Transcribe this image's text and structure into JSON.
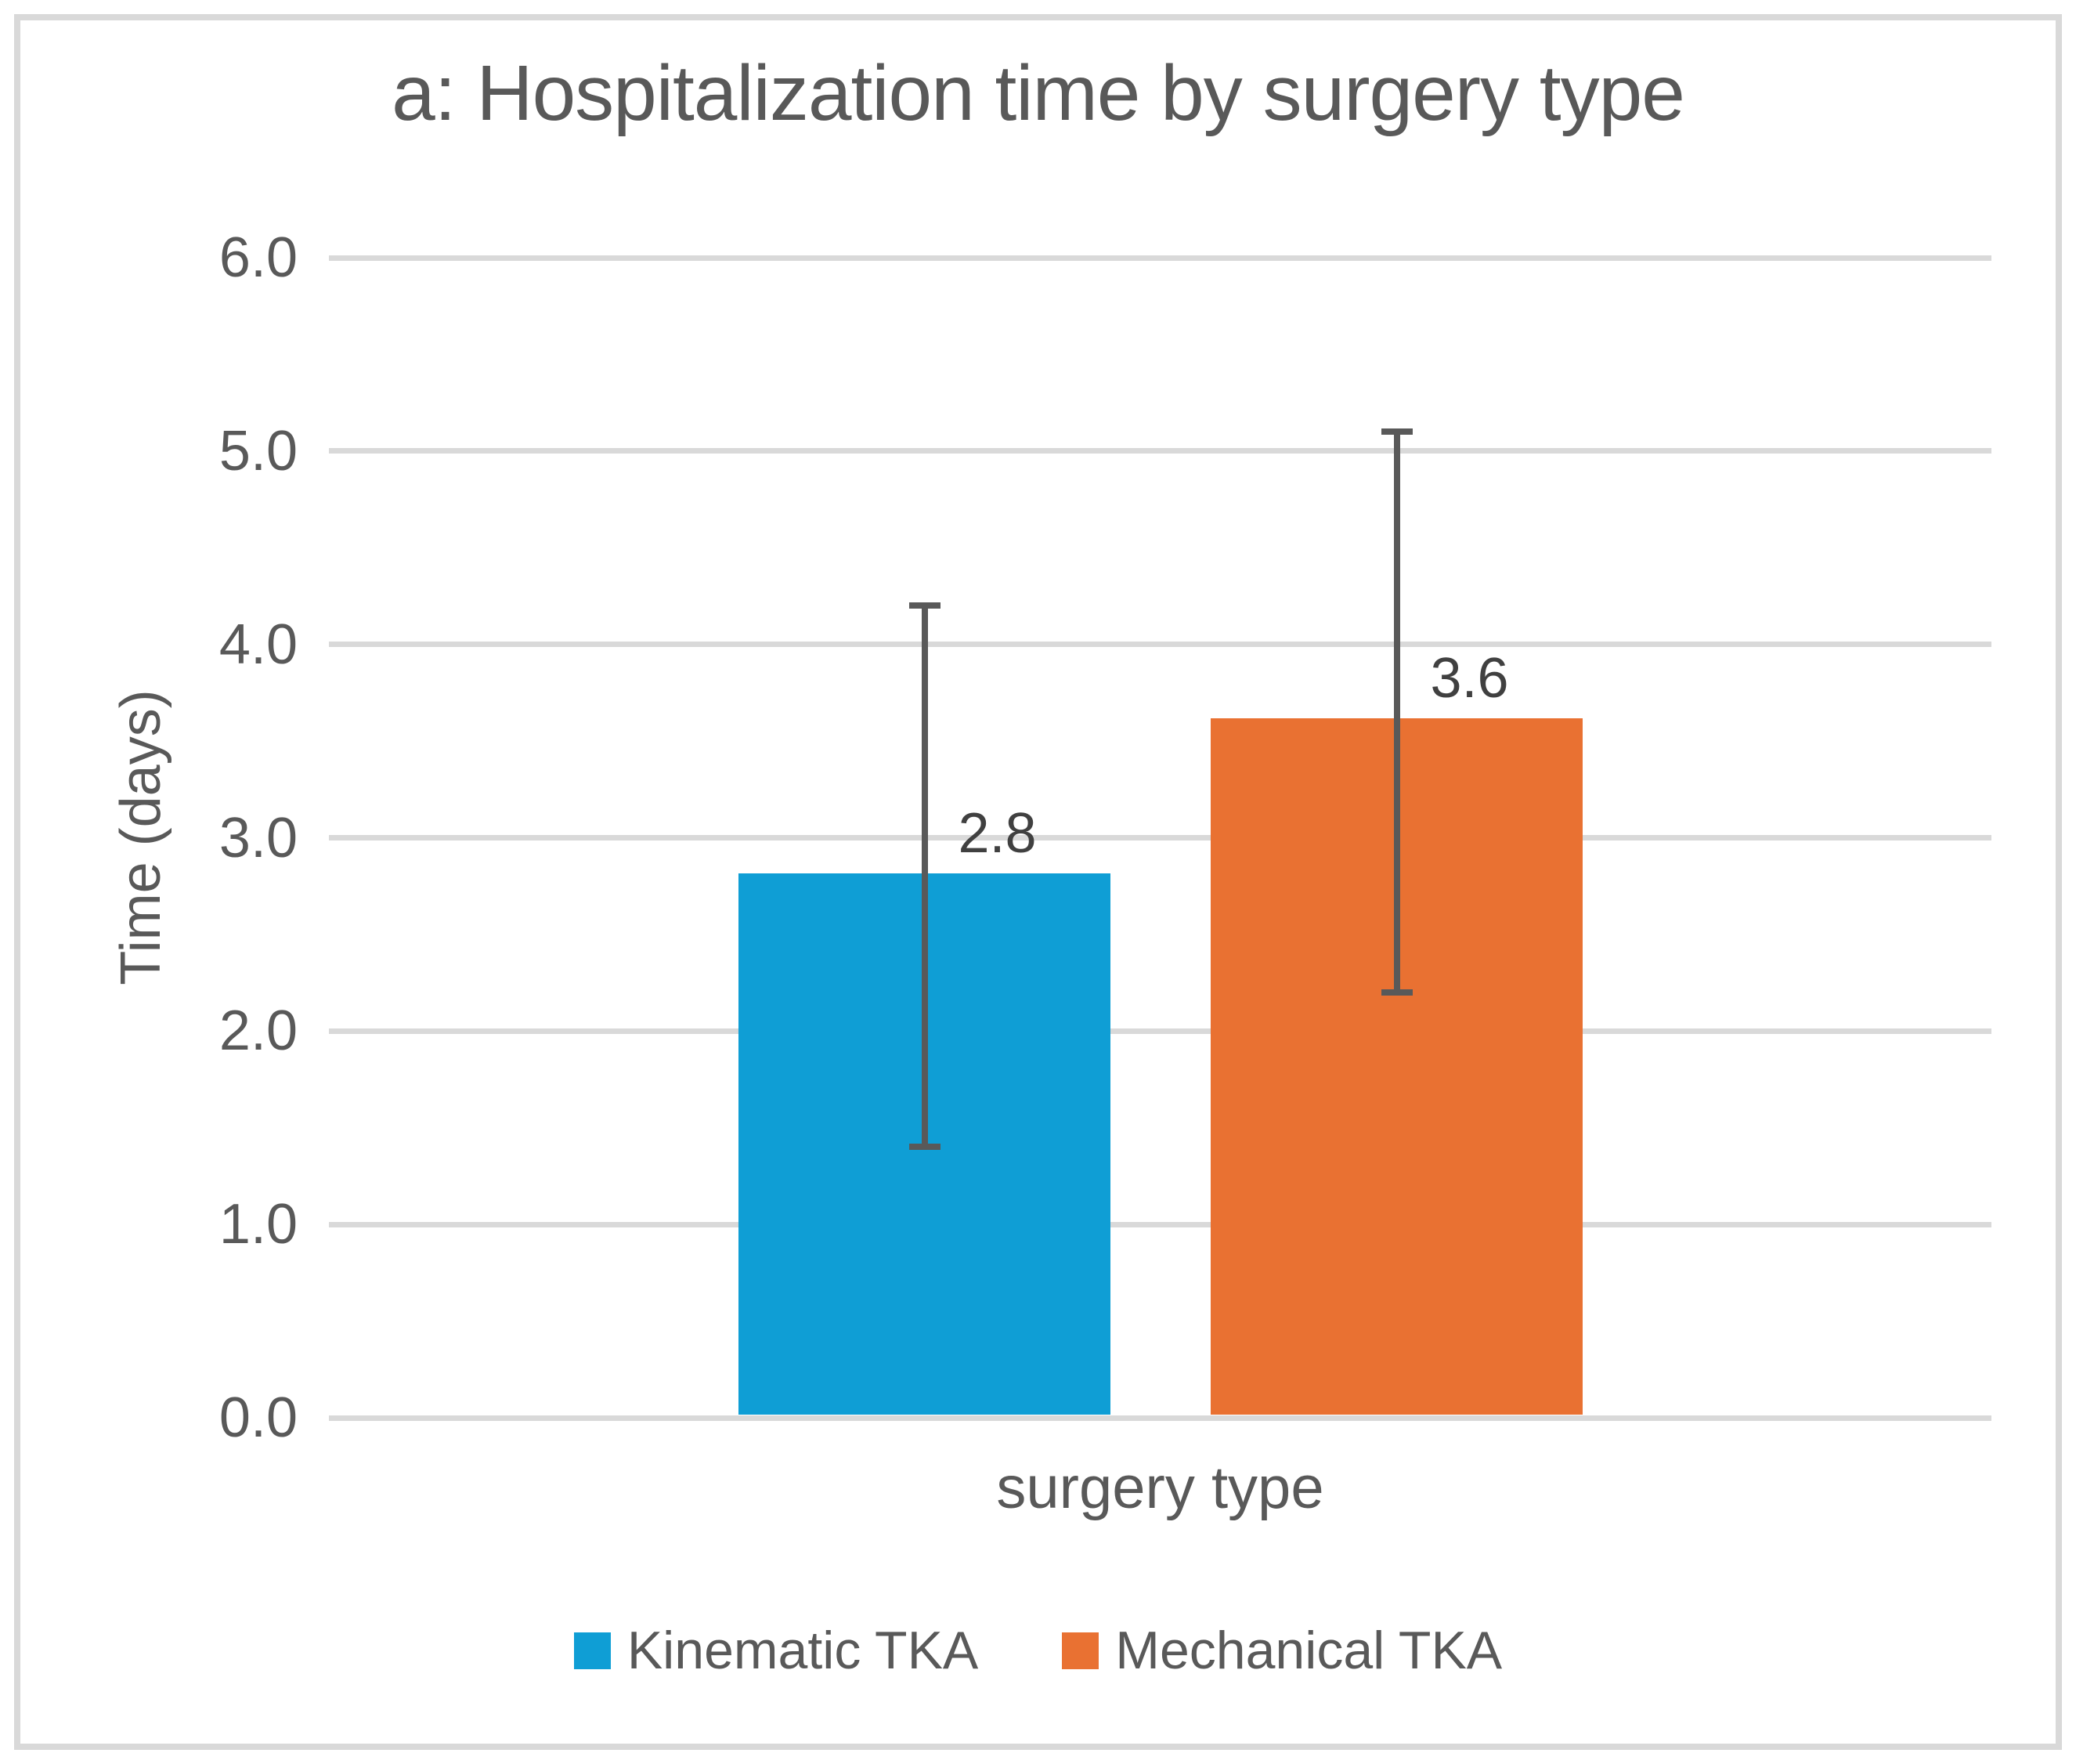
{
  "figure": {
    "background": "#FFFFFF",
    "border_color": "#D9D9D9"
  },
  "chart_data": {
    "type": "bar",
    "title": "a: Hospitalization time by surgery type",
    "xlabel": "surgery type",
    "ylabel": "Time (days)",
    "ylim": [
      0,
      6
    ],
    "yticks": [
      0,
      1,
      2,
      3,
      4,
      5,
      6
    ],
    "ytick_labels": [
      "0.0",
      "1.0",
      "2.0",
      "3.0",
      "4.0",
      "5.0",
      "6.0"
    ],
    "categories": [
      "Kinematic TKA",
      "Mechanical TKA"
    ],
    "values": [
      2.8,
      3.6
    ],
    "value_labels": [
      "2.8",
      "3.6"
    ],
    "error_bars": [
      {
        "low": 1.4,
        "high": 4.2
      },
      {
        "low": 2.2,
        "high": 5.1
      }
    ],
    "colors": [
      "#0F9ED5",
      "#E97132"
    ],
    "legend": [
      "Kinematic TKA",
      "Mechanical TKA"
    ],
    "legend_position": "bottom",
    "grid": true,
    "grid_color": "#D9D9D9",
    "text_color": "#595959",
    "data_label_color": "#404040",
    "error_bar_color": "#595959"
  }
}
